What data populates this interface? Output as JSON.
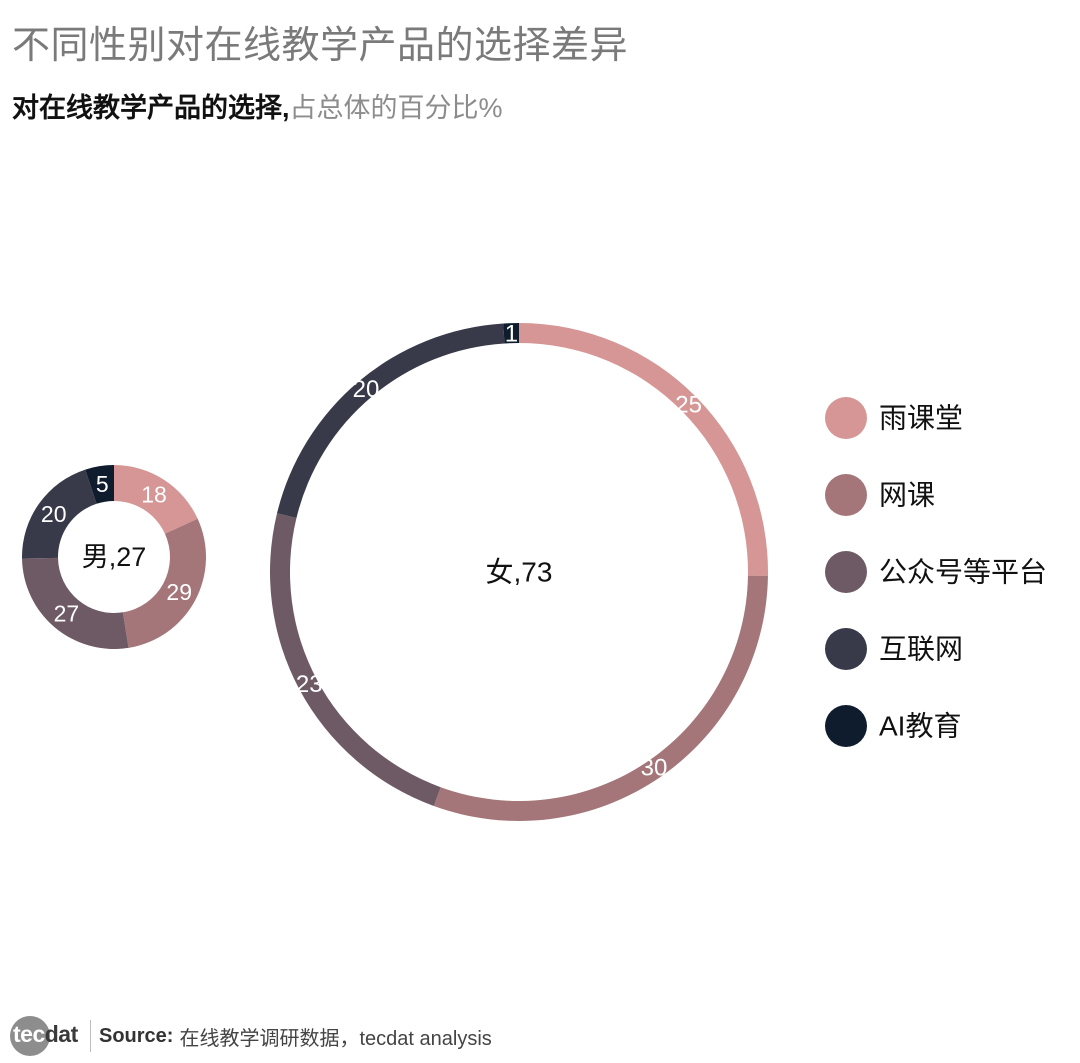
{
  "header": {
    "title": "不同性别对在线教学产品的选择差异",
    "subtitle_bold": "对在线教学产品的选择,",
    "subtitle_light": "占总体的百分比%"
  },
  "chart_data": {
    "type": "pie",
    "variant": "donut",
    "categories": [
      "雨课堂",
      "网课",
      "公众号等平台",
      "互联网",
      "AI教育"
    ],
    "colors": [
      "#d69695",
      "#a47679",
      "#6e5a65",
      "#393a49",
      "#0f1c2e"
    ],
    "legend_position": "right",
    "series": [
      {
        "name": "男",
        "total": 27,
        "center_label": "男,27",
        "values": [
          18,
          29,
          27,
          20,
          5
        ]
      },
      {
        "name": "女",
        "total": 73,
        "center_label": "女,73",
        "values": [
          25,
          30,
          23,
          20,
          1
        ]
      }
    ]
  },
  "footer": {
    "logo_tec": "tec",
    "logo_dat": "dat",
    "source_label": "Source:",
    "source_text": "在线教学调研数据，tecdat analysis"
  }
}
